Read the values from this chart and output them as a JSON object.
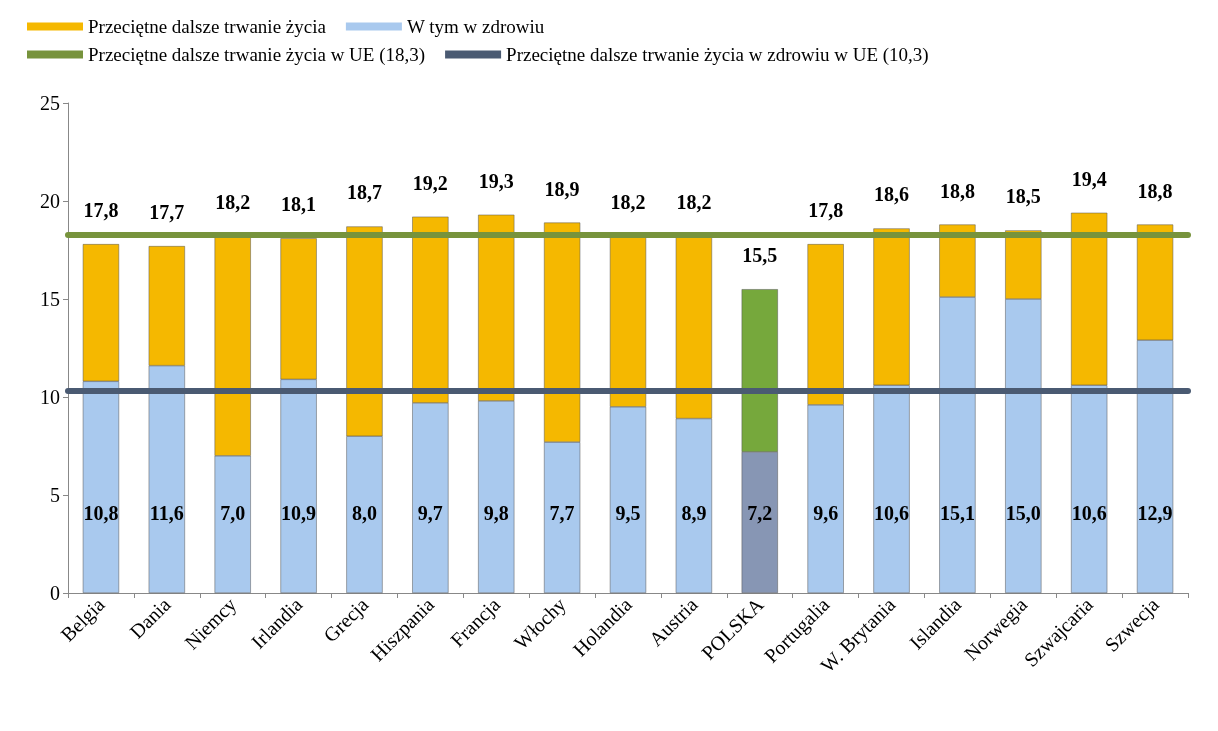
{
  "chart_data": {
    "type": "bar",
    "stacked": true,
    "categories": [
      "Belgia",
      "Dania",
      "Niemcy",
      "Irlandia",
      "Grecja",
      "Hiszpania",
      "Francja",
      "Włochy",
      "Holandia",
      "Austria",
      "POLSKA",
      "Portugalia",
      "W. Brytania",
      "Islandia",
      "Norwegia",
      "Szwajcaria",
      "Szwecja"
    ],
    "series": [
      {
        "name": "W tym w zdrowiu",
        "color": "#a9c9ee",
        "colors": [
          "#a9c9ee",
          "#a9c9ee",
          "#a9c9ee",
          "#a9c9ee",
          "#a9c9ee",
          "#a9c9ee",
          "#a9c9ee",
          "#a9c9ee",
          "#a9c9ee",
          "#a9c9ee",
          "#8796b4",
          "#a9c9ee",
          "#a9c9ee",
          "#a9c9ee",
          "#a9c9ee",
          "#a9c9ee",
          "#a9c9ee"
        ],
        "values": [
          10.8,
          11.6,
          7.0,
          10.9,
          8.0,
          9.7,
          9.8,
          7.7,
          9.5,
          8.9,
          7.2,
          9.6,
          10.6,
          15.1,
          15.0,
          10.6,
          12.9
        ],
        "value_labels": [
          "10,8",
          "11,6",
          "7,0",
          "10,9",
          "8,0",
          "9,7",
          "9,8",
          "7,7",
          "9,5",
          "8,9",
          "7,2",
          "9,6",
          "10,6",
          "15,1",
          "15,0",
          "10,6",
          "12,9"
        ]
      },
      {
        "name": "Przeciętne dalsze trwanie życia",
        "color": "#f5b800",
        "colors": [
          "#f5b800",
          "#f5b800",
          "#f5b800",
          "#f5b800",
          "#f5b800",
          "#f5b800",
          "#f5b800",
          "#f5b800",
          "#f5b800",
          "#f5b800",
          "#76a83c",
          "#f5b800",
          "#f5b800",
          "#f5b800",
          "#f5b800",
          "#f5b800",
          "#f5b800"
        ],
        "values": [
          7.0,
          6.1,
          11.2,
          7.2,
          10.7,
          9.5,
          9.5,
          11.2,
          8.7,
          9.3,
          8.3,
          8.2,
          8.0,
          3.7,
          3.5,
          8.8,
          5.9
        ]
      }
    ],
    "totals": [
      "17,8",
      "17,7",
      "18,2",
      "18,1",
      "18,7",
      "19,2",
      "19,3",
      "18,9",
      "18,2",
      "18,2",
      "15,5",
      "17,8",
      "18,6",
      "18,8",
      "18,5",
      "19,4",
      "18,8"
    ],
    "ref_lines": [
      {
        "axis": "y",
        "value": 18.3,
        "label": "Przeciętne dalsze trwanie życia w UE (18,3)",
        "color": "#77933c"
      },
      {
        "axis": "y",
        "value": 10.3,
        "label": "Przeciętne dalsze trwanie życia w zdrowiu w UE (10,3)",
        "color": "#4a5a72"
      }
    ],
    "ylim": [
      0,
      25
    ],
    "yticks": [
      0,
      5,
      10,
      15,
      20,
      25
    ],
    "grid": false,
    "legend": "top"
  }
}
